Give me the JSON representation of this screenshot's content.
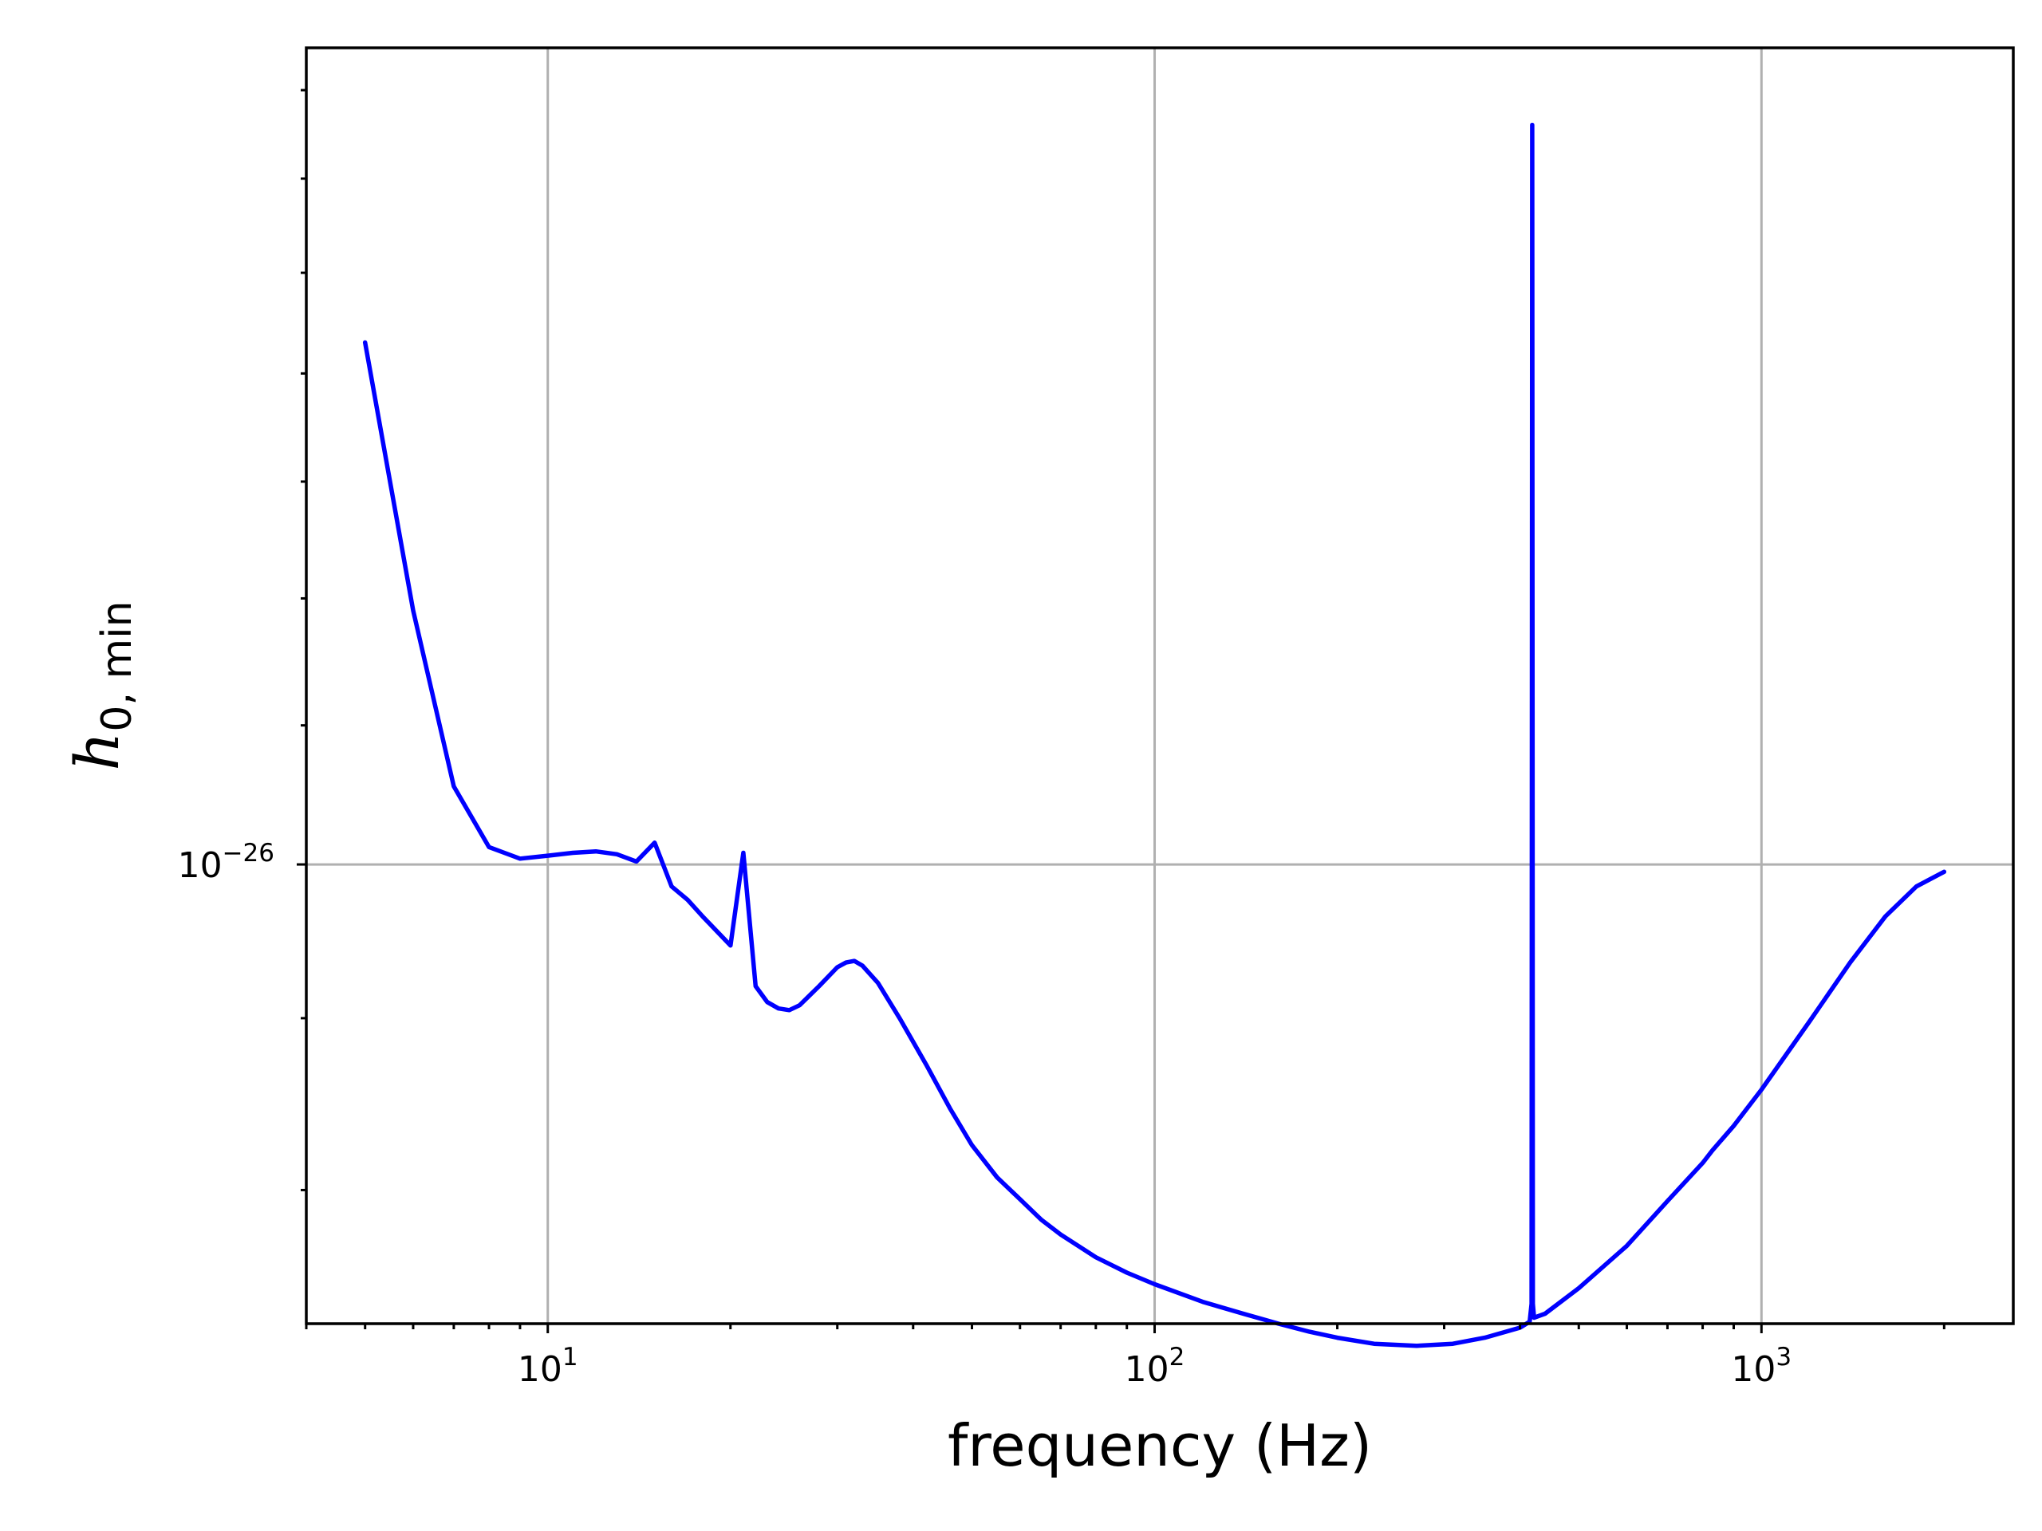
{
  "chart_data": {
    "type": "line",
    "title": "",
    "xlabel": "frequency (Hz)",
    "ylabel": {
      "main": "h",
      "sub": "0, min"
    },
    "x_scale": "log",
    "y_scale": "log",
    "xlim": [
      4,
      2600
    ],
    "ylim": [
      7.3e-27,
      1.75e-26
    ],
    "x_major_ticks": [
      {
        "value": 10,
        "base": "10",
        "exp": "1"
      },
      {
        "value": 100,
        "base": "10",
        "exp": "2"
      },
      {
        "value": 1000,
        "base": "10",
        "exp": "3"
      }
    ],
    "y_major_ticks": [
      {
        "value": 1e-26,
        "base": "10",
        "exp": "−26"
      }
    ],
    "x_minor_ticks": [
      4,
      5,
      6,
      7,
      8,
      9,
      20,
      30,
      40,
      50,
      60,
      70,
      80,
      90,
      200,
      300,
      400,
      500,
      600,
      700,
      800,
      900,
      2000
    ],
    "y_minor_ticks": [
      8e-27,
      9e-27,
      2e-26
    ],
    "grid": true,
    "colors": {
      "series": "#0000ff",
      "grid": "#b0b0b0",
      "axes": "#000000"
    },
    "series": [
      {
        "color": "#0000ff",
        "points": [
          [
            5,
            1.43e-26
          ],
          [
            6,
            1.19e-26
          ],
          [
            7,
            1.055e-26
          ],
          [
            8,
            1.012e-26
          ],
          [
            9,
            1.004e-26
          ],
          [
            10,
            1.006e-26
          ],
          [
            11,
            1.008e-26
          ],
          [
            12,
            1.009e-26
          ],
          [
            13,
            1.007e-26
          ],
          [
            14,
            1.002e-26
          ],
          [
            15,
            1.015e-26
          ],
          [
            16,
            9.85e-27
          ],
          [
            17,
            9.76e-27
          ],
          [
            18,
            9.65e-27
          ],
          [
            20,
            9.46e-27
          ],
          [
            21,
            1.008e-26
          ],
          [
            22,
            9.2e-27
          ],
          [
            23,
            9.1e-27
          ],
          [
            24,
            9.06e-27
          ],
          [
            25,
            9.05e-27
          ],
          [
            26,
            9.08e-27
          ],
          [
            28,
            9.2e-27
          ],
          [
            30,
            9.32e-27
          ],
          [
            31,
            9.35e-27
          ],
          [
            32,
            9.36e-27
          ],
          [
            33,
            9.33e-27
          ],
          [
            35,
            9.22e-27
          ],
          [
            38,
            9e-27
          ],
          [
            42,
            8.72e-27
          ],
          [
            46,
            8.46e-27
          ],
          [
            50,
            8.25e-27
          ],
          [
            55,
            8.07e-27
          ],
          [
            60,
            7.95e-27
          ],
          [
            65,
            7.84e-27
          ],
          [
            70,
            7.76e-27
          ],
          [
            80,
            7.64e-27
          ],
          [
            90,
            7.56e-27
          ],
          [
            100,
            7.5e-27
          ],
          [
            120,
            7.41e-27
          ],
          [
            140,
            7.35e-27
          ],
          [
            160,
            7.3e-27
          ],
          [
            180,
            7.26e-27
          ],
          [
            200,
            7.23e-27
          ],
          [
            230,
            7.2e-27
          ],
          [
            270,
            7.19e-27
          ],
          [
            310,
            7.2e-27
          ],
          [
            350,
            7.23e-27
          ],
          [
            400,
            7.28e-27
          ],
          [
            415,
            7.31e-27
          ],
          [
            418,
            7.4e-27
          ],
          [
            419,
            1.66e-26
          ],
          [
            420,
            7.4e-27
          ],
          [
            422,
            7.33e-27
          ],
          [
            440,
            7.35e-27
          ],
          [
            500,
            7.48e-27
          ],
          [
            600,
            7.7e-27
          ],
          [
            700,
            7.94e-27
          ],
          [
            800,
            8.15e-27
          ],
          [
            830,
            8.22e-27
          ],
          [
            900,
            8.36e-27
          ],
          [
            1000,
            8.57e-27
          ],
          [
            1200,
            8.98e-27
          ],
          [
            1400,
            9.35e-27
          ],
          [
            1600,
            9.65e-27
          ],
          [
            1800,
            9.85e-27
          ],
          [
            2000,
            9.95e-27
          ]
        ]
      }
    ]
  }
}
